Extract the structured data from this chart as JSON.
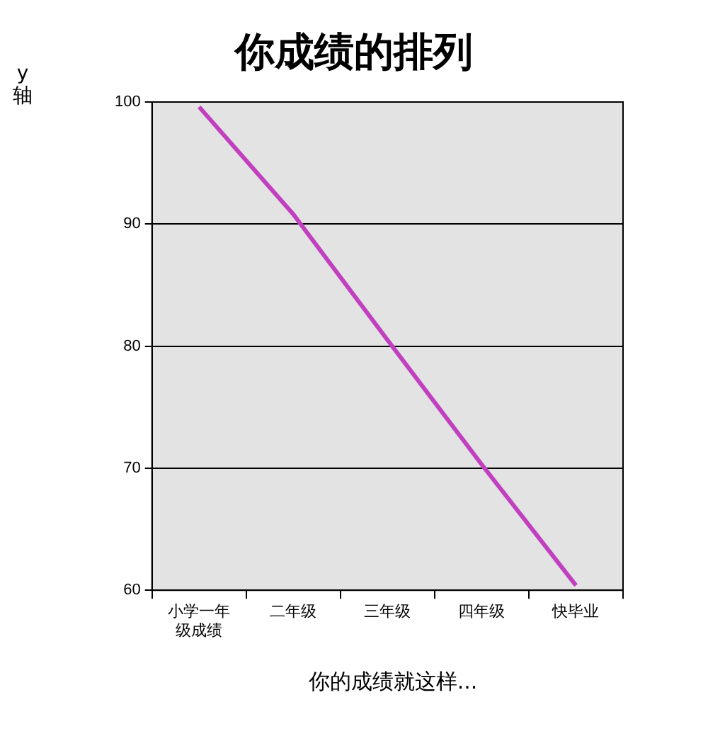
{
  "chart_data": {
    "type": "line",
    "title": "你成绩的排列",
    "xlabel": "你的成绩就这样...",
    "ylabel": "y轴",
    "categories": [
      "小学一年级成绩",
      "二年级",
      "三年级",
      "四年级",
      "快毕业"
    ],
    "series": [
      {
        "color": "#c040c0",
        "values": [
          99.6,
          90.8,
          80.5,
          70.3,
          60.4
        ]
      }
    ],
    "ylim": [
      60,
      100
    ],
    "yticks": [
      60,
      70,
      80,
      90,
      100
    ],
    "grid": "y",
    "legend": false,
    "marker": "none",
    "line_style": "solid"
  }
}
